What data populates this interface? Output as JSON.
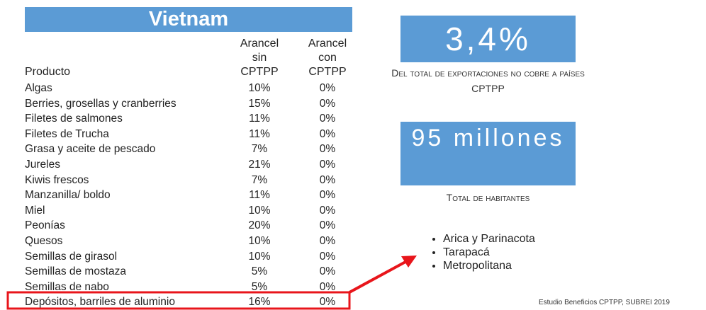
{
  "header": {
    "title": "Vietnam"
  },
  "table": {
    "columns": [
      [
        "Producto"
      ],
      [
        "Arancel",
        "sin",
        "CPTPP"
      ],
      [
        "Arancel",
        "con",
        "CPTPP"
      ]
    ],
    "rows": [
      [
        "Algas",
        "10%",
        "0%"
      ],
      [
        "Berries, grosellas y cranberries",
        "15%",
        "0%"
      ],
      [
        "Filetes de salmones",
        "11%",
        "0%"
      ],
      [
        "Filetes de Trucha",
        "11%",
        "0%"
      ],
      [
        "Grasa y aceite de pescado",
        "7%",
        "0%"
      ],
      [
        "Jureles",
        "21%",
        "0%"
      ],
      [
        "Kiwis frescos",
        "7%",
        "0%"
      ],
      [
        "Manzanilla/ boldo",
        "11%",
        "0%"
      ],
      [
        "Miel",
        "10%",
        "0%"
      ],
      [
        "Peonías",
        "20%",
        "0%"
      ],
      [
        "Quesos",
        "10%",
        "0%"
      ],
      [
        "Semillas de girasol",
        "10%",
        "0%"
      ],
      [
        "Semillas de mostaza",
        "5%",
        "0%"
      ],
      [
        "Semillas de nabo",
        "5%",
        "0%"
      ],
      [
        "Depósitos, barriles de aluminio",
        "16%",
        "0%"
      ]
    ]
  },
  "stats": [
    {
      "value": "3,4%",
      "caption": "Del total de exportaciones no cobre a países CPTPP"
    },
    {
      "value": "95 millones",
      "caption": "Total de habitantes"
    }
  ],
  "regions": [
    "Arica y Parinacota",
    "Tarapacá",
    "Metropolitana"
  ],
  "footnote": "Estudio Beneficios CPTPP, SUBREI 2019"
}
